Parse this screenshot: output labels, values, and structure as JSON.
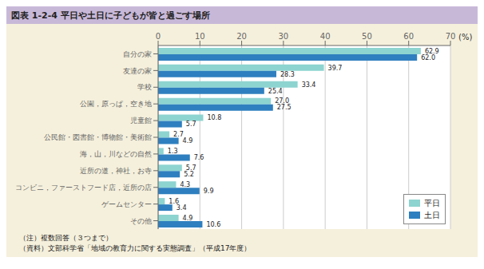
{
  "chart_data": {
    "type": "bar",
    "orientation": "horizontal",
    "title": "図表 1-2-4 平日や土日に子どもが皆と過ごす場所",
    "xlabel": "(%)",
    "categories": [
      "自分の家",
      "友達の家",
      "学校",
      "公園，原っぱ，空き地",
      "児童館",
      "公民館・図書館・博物館・美術館",
      "海，山，川などの自然",
      "近所の道，神社，お寺",
      "コンビニ，ファーストフード店，近所の店",
      "ゲームセンター",
      "その他"
    ],
    "series": [
      {
        "name": "平日",
        "color": "#8dd4d0",
        "values": [
          62.9,
          39.7,
          33.4,
          27.0,
          10.8,
          2.7,
          1.3,
          5.7,
          4.3,
          1.6,
          4.9
        ],
        "value_labels": [
          "62.9",
          "39.7",
          "33.4",
          "27.0",
          "10.8",
          "2.7",
          "1.3",
          "5.7",
          "4.3",
          "1.6",
          "4.9"
        ]
      },
      {
        "name": "土日",
        "color": "#2e7fbf",
        "values": [
          62.0,
          28.3,
          25.4,
          27.5,
          5.7,
          4.9,
          7.6,
          5.2,
          9.9,
          3.4,
          10.6
        ],
        "value_labels": [
          "62.0",
          "28.3",
          "25.4",
          "27.5",
          "5.7",
          "4.9",
          "7.6",
          "5.2",
          "9.9",
          "3.4",
          "10.6"
        ]
      }
    ],
    "xlim": [
      0,
      70
    ],
    "xticks": [
      0,
      10,
      20,
      30,
      40,
      50,
      60,
      70
    ],
    "grid": true,
    "legend": "lower right",
    "data_labels": true,
    "annotations": [
      "（注）複数回答（３つまで）",
      "（資料）文部科学省「地域の教育力に関する実態調査」（平成17年度）"
    ]
  }
}
